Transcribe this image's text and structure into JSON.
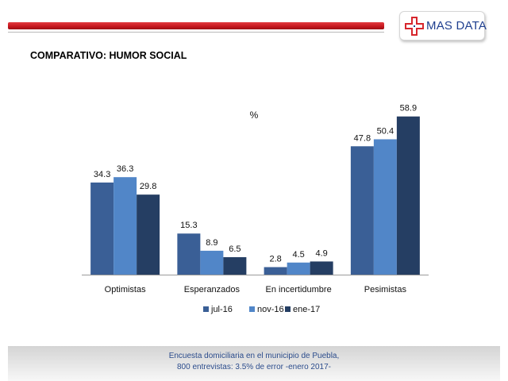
{
  "brand": {
    "logo_text": "MAS DATA",
    "accent_color": "#c5161d",
    "logo_icon": "medical-cross-icon"
  },
  "page": {
    "title": "COMPARATIVO: HUMOR SOCIAL"
  },
  "footer": {
    "line1": "Encuesta domiciliaria en el municipio de Puebla,",
    "line2": "800 entrevistas: 3.5% de error -enero 2017-"
  },
  "chart_data": {
    "type": "bar",
    "title": "%",
    "categories": [
      "Optimistas",
      "Esperanzados",
      "En incertidumbre",
      "Pesimistas"
    ],
    "series": [
      {
        "name": "jul-16",
        "color": "#3a5f96",
        "values": [
          34.3,
          15.3,
          2.8,
          47.8
        ]
      },
      {
        "name": "nov-16",
        "color": "#5186c8",
        "values": [
          36.3,
          8.9,
          4.5,
          50.4
        ]
      },
      {
        "name": "ene-17",
        "color": "#253e63",
        "values": [
          29.8,
          6.5,
          4.9,
          58.9
        ]
      }
    ],
    "ylim": [
      0,
      60
    ],
    "legend": "bottom",
    "grid": false,
    "data_labels": true
  }
}
